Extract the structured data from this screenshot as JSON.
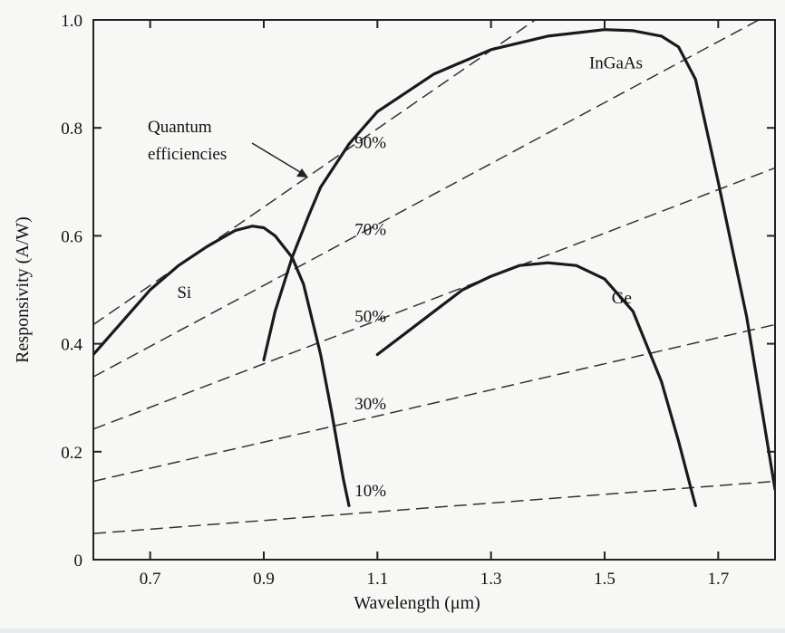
{
  "chart_data": {
    "type": "line",
    "xlabel": "Wavelength (μm)",
    "ylabel": "Responsivity (A/W)",
    "xlim": [
      0.6,
      1.8
    ],
    "ylim": [
      0,
      1.0
    ],
    "x_ticks": [
      0.7,
      0.9,
      1.1,
      1.3,
      1.5,
      1.7
    ],
    "x_tick_labels": [
      "0.7",
      "0.9",
      "1.1",
      "1.3",
      "1.5",
      "1.7"
    ],
    "y_ticks": [
      0,
      0.2,
      0.4,
      0.6,
      0.8,
      1.0
    ],
    "y_tick_labels": [
      "0",
      "0.2",
      "0.4",
      "0.6",
      "0.8",
      "1.0"
    ],
    "grid": false,
    "series": [
      {
        "name": "Si",
        "x": [
          0.6,
          0.65,
          0.7,
          0.75,
          0.8,
          0.85,
          0.88,
          0.9,
          0.92,
          0.95,
          0.97,
          1.0,
          1.02,
          1.04,
          1.05
        ],
        "y": [
          0.38,
          0.44,
          0.5,
          0.545,
          0.58,
          0.61,
          0.618,
          0.615,
          0.6,
          0.56,
          0.51,
          0.38,
          0.27,
          0.15,
          0.1
        ]
      },
      {
        "name": "InGaAs",
        "x": [
          0.9,
          0.92,
          0.95,
          0.98,
          1.0,
          1.05,
          1.1,
          1.2,
          1.3,
          1.4,
          1.5,
          1.55,
          1.6,
          1.63,
          1.66,
          1.7,
          1.75,
          1.8
        ],
        "y": [
          0.37,
          0.46,
          0.56,
          0.64,
          0.69,
          0.77,
          0.83,
          0.9,
          0.945,
          0.97,
          0.982,
          0.98,
          0.97,
          0.95,
          0.89,
          0.7,
          0.45,
          0.13
        ]
      },
      {
        "name": "Ge",
        "x": [
          1.1,
          1.15,
          1.2,
          1.25,
          1.3,
          1.35,
          1.4,
          1.45,
          1.5,
          1.55,
          1.6,
          1.63,
          1.65,
          1.66
        ],
        "y": [
          0.38,
          0.42,
          0.46,
          0.5,
          0.525,
          0.545,
          0.55,
          0.545,
          0.52,
          0.46,
          0.33,
          0.22,
          0.14,
          0.1
        ]
      }
    ],
    "quantum_efficiency_lines": [
      {
        "label": "10%",
        "eta": 0.1
      },
      {
        "label": "30%",
        "eta": 0.3
      },
      {
        "label": "50%",
        "eta": 0.5
      },
      {
        "label": "70%",
        "eta": 0.7
      },
      {
        "label": "90%",
        "eta": 0.9
      }
    ],
    "annotations": [
      "Quantum",
      "efficiencies"
    ],
    "legend": "none (curves labeled inline)"
  }
}
